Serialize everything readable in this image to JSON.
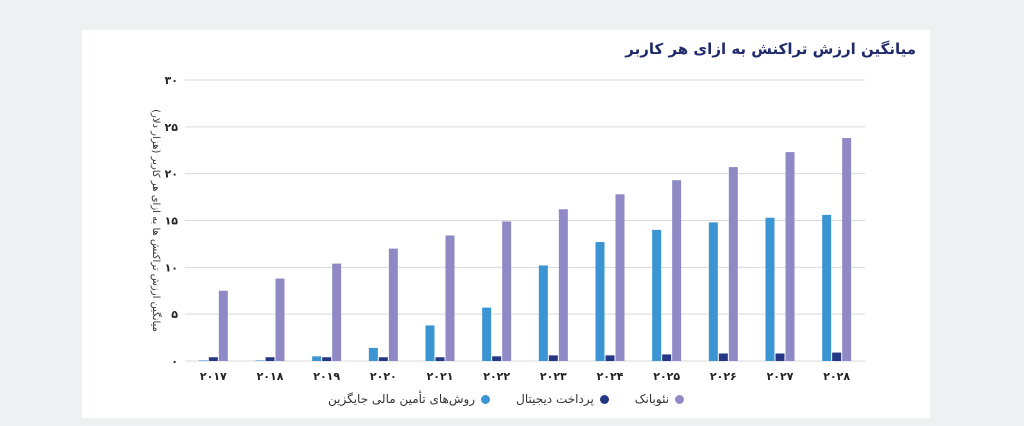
{
  "chart_data": {
    "type": "bar",
    "title": "میانگین ارزش تراکنش به ازای هر کاربر",
    "ylabel": "میانگین ارزش تراکنش ها به ازای هر کاربر (هزار دلار)",
    "xlabel": "",
    "ylim": [
      0,
      30
    ],
    "yticks": [
      "۰",
      "۵",
      "۱۰",
      "۱۵",
      "۲۰",
      "۲۵",
      "۳۰"
    ],
    "ytick_values": [
      0,
      5,
      10,
      15,
      20,
      25,
      30
    ],
    "categories": [
      "۲۰۱۷",
      "۲۰۱۸",
      "۲۰۱۹",
      "۲۰۲۰",
      "۲۰۲۱",
      "۲۰۲۲",
      "۲۰۲۳",
      "۲۰۲۴",
      "۲۰۲۵",
      "۲۰۲۶",
      "۲۰۲۷",
      "۲۰۲۸"
    ],
    "series": [
      {
        "name": "روش‌های تأمین مالی جایگزین",
        "color": "#3b95d2",
        "values": [
          0.05,
          0.05,
          0.5,
          1.4,
          3.8,
          5.7,
          10.2,
          12.7,
          14.0,
          14.8,
          15.3,
          15.6
        ]
      },
      {
        "name": "پرداخت دیجیتال",
        "color": "#253685",
        "values": [
          0.4,
          0.4,
          0.4,
          0.4,
          0.4,
          0.5,
          0.6,
          0.6,
          0.7,
          0.8,
          0.8,
          0.9
        ]
      },
      {
        "name": "نئوبانک",
        "color": "#8f8ac6",
        "values": [
          7.5,
          8.8,
          10.4,
          12.0,
          13.4,
          14.9,
          16.2,
          17.8,
          19.3,
          20.7,
          22.3,
          23.8
        ]
      }
    ],
    "grid": "horizontal",
    "legend": "bottom-center"
  }
}
